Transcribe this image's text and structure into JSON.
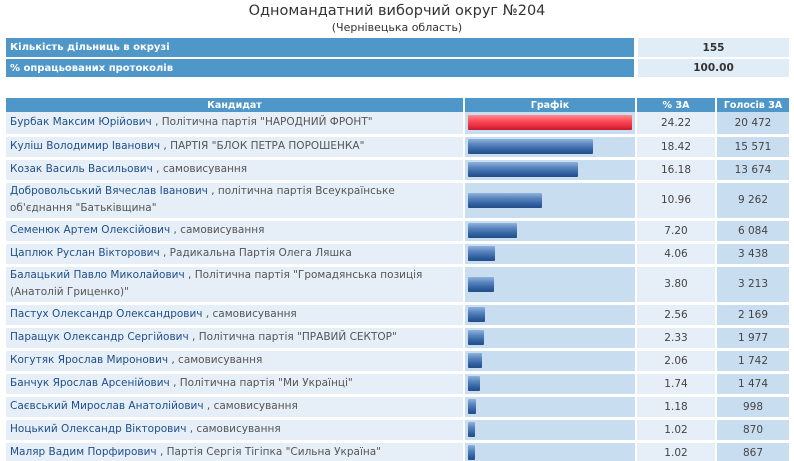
{
  "title": "Одномандатний виборчий округ №204",
  "subtitle": "(Чернівецька область)",
  "summary": [
    {
      "label": "Кількість дільниць в окрузі",
      "value": "155"
    },
    {
      "label": "% опрацьованих протоколів",
      "value": "100.00"
    }
  ],
  "columns": {
    "candidate": "Кандидат",
    "graph": "Графік",
    "pct": "% ЗА",
    "votes": "Голосів ЗА"
  },
  "colors": {
    "header_blue": "#4f97c9",
    "bar_blue": "#2f5f9e",
    "bar_leader_red": "#ff4b58",
    "row_bg": "#e6eef7"
  },
  "candidates": [
    {
      "name": "Бурбак Максим Юрійович",
      "party": "Політична партія \"НАРОДНИЙ ФРОНТ\"",
      "pct": "24.22",
      "votes": "20 472",
      "share": 24.22
    },
    {
      "name": "Куліш Володимир Іванович",
      "party": "ПАРТІЯ \"БЛОК ПЕТРА ПОРОШЕНКА\"",
      "pct": "18.42",
      "votes": "15 571",
      "share": 18.42
    },
    {
      "name": "Козак Василь Васильович",
      "party": "самовисування",
      "pct": "16.18",
      "votes": "13 674",
      "share": 16.18
    },
    {
      "name": "Добровольський Вячеслав Іванович",
      "party": "політична партія Всеукраїнське об'єднання \"Батьківщина\"",
      "pct": "10.96",
      "votes": "9 262",
      "share": 10.96
    },
    {
      "name": "Семенюк Артем Олексійович",
      "party": "самовисування",
      "pct": "7.20",
      "votes": "6 084",
      "share": 7.2
    },
    {
      "name": "Цаплюк Руслан Вікторович",
      "party": "Радикальна Партія Олега Ляшка",
      "pct": "4.06",
      "votes": "3 438",
      "share": 4.06
    },
    {
      "name": "Балацький Павло Миколайович",
      "party": "Політична партія \"Громадянська позиція (Анатолій Гриценко)\"",
      "pct": "3.80",
      "votes": "3 213",
      "share": 3.8
    },
    {
      "name": "Пастух Олександр Олександрович",
      "party": "самовисування",
      "pct": "2.56",
      "votes": "2 169",
      "share": 2.56
    },
    {
      "name": "Паращук Олександр Сергійович",
      "party": "Політична партія \"ПРАВИЙ СЕКТОР\"",
      "pct": "2.33",
      "votes": "1 977",
      "share": 2.33
    },
    {
      "name": "Когутяк Ярослав Миронович",
      "party": "самовисування",
      "pct": "2.06",
      "votes": "1 742",
      "share": 2.06
    },
    {
      "name": "Банчук Ярослав Арсенійович",
      "party": "Політична партія \"Ми Українці\"",
      "pct": "1.74",
      "votes": "1 474",
      "share": 1.74
    },
    {
      "name": "Саєвський Мирослав Анатолійович",
      "party": "самовисування",
      "pct": "1.18",
      "votes": "998",
      "share": 1.18
    },
    {
      "name": "Ноцький Олександр Вікторович",
      "party": "самовисування",
      "pct": "1.02",
      "votes": "870",
      "share": 1.02
    },
    {
      "name": "Маляр Вадим Порфирович",
      "party": "Партія Сергія Тігіпка \"Сильна Україна\"",
      "pct": "1.02",
      "votes": "867",
      "share": 1.02
    }
  ]
}
